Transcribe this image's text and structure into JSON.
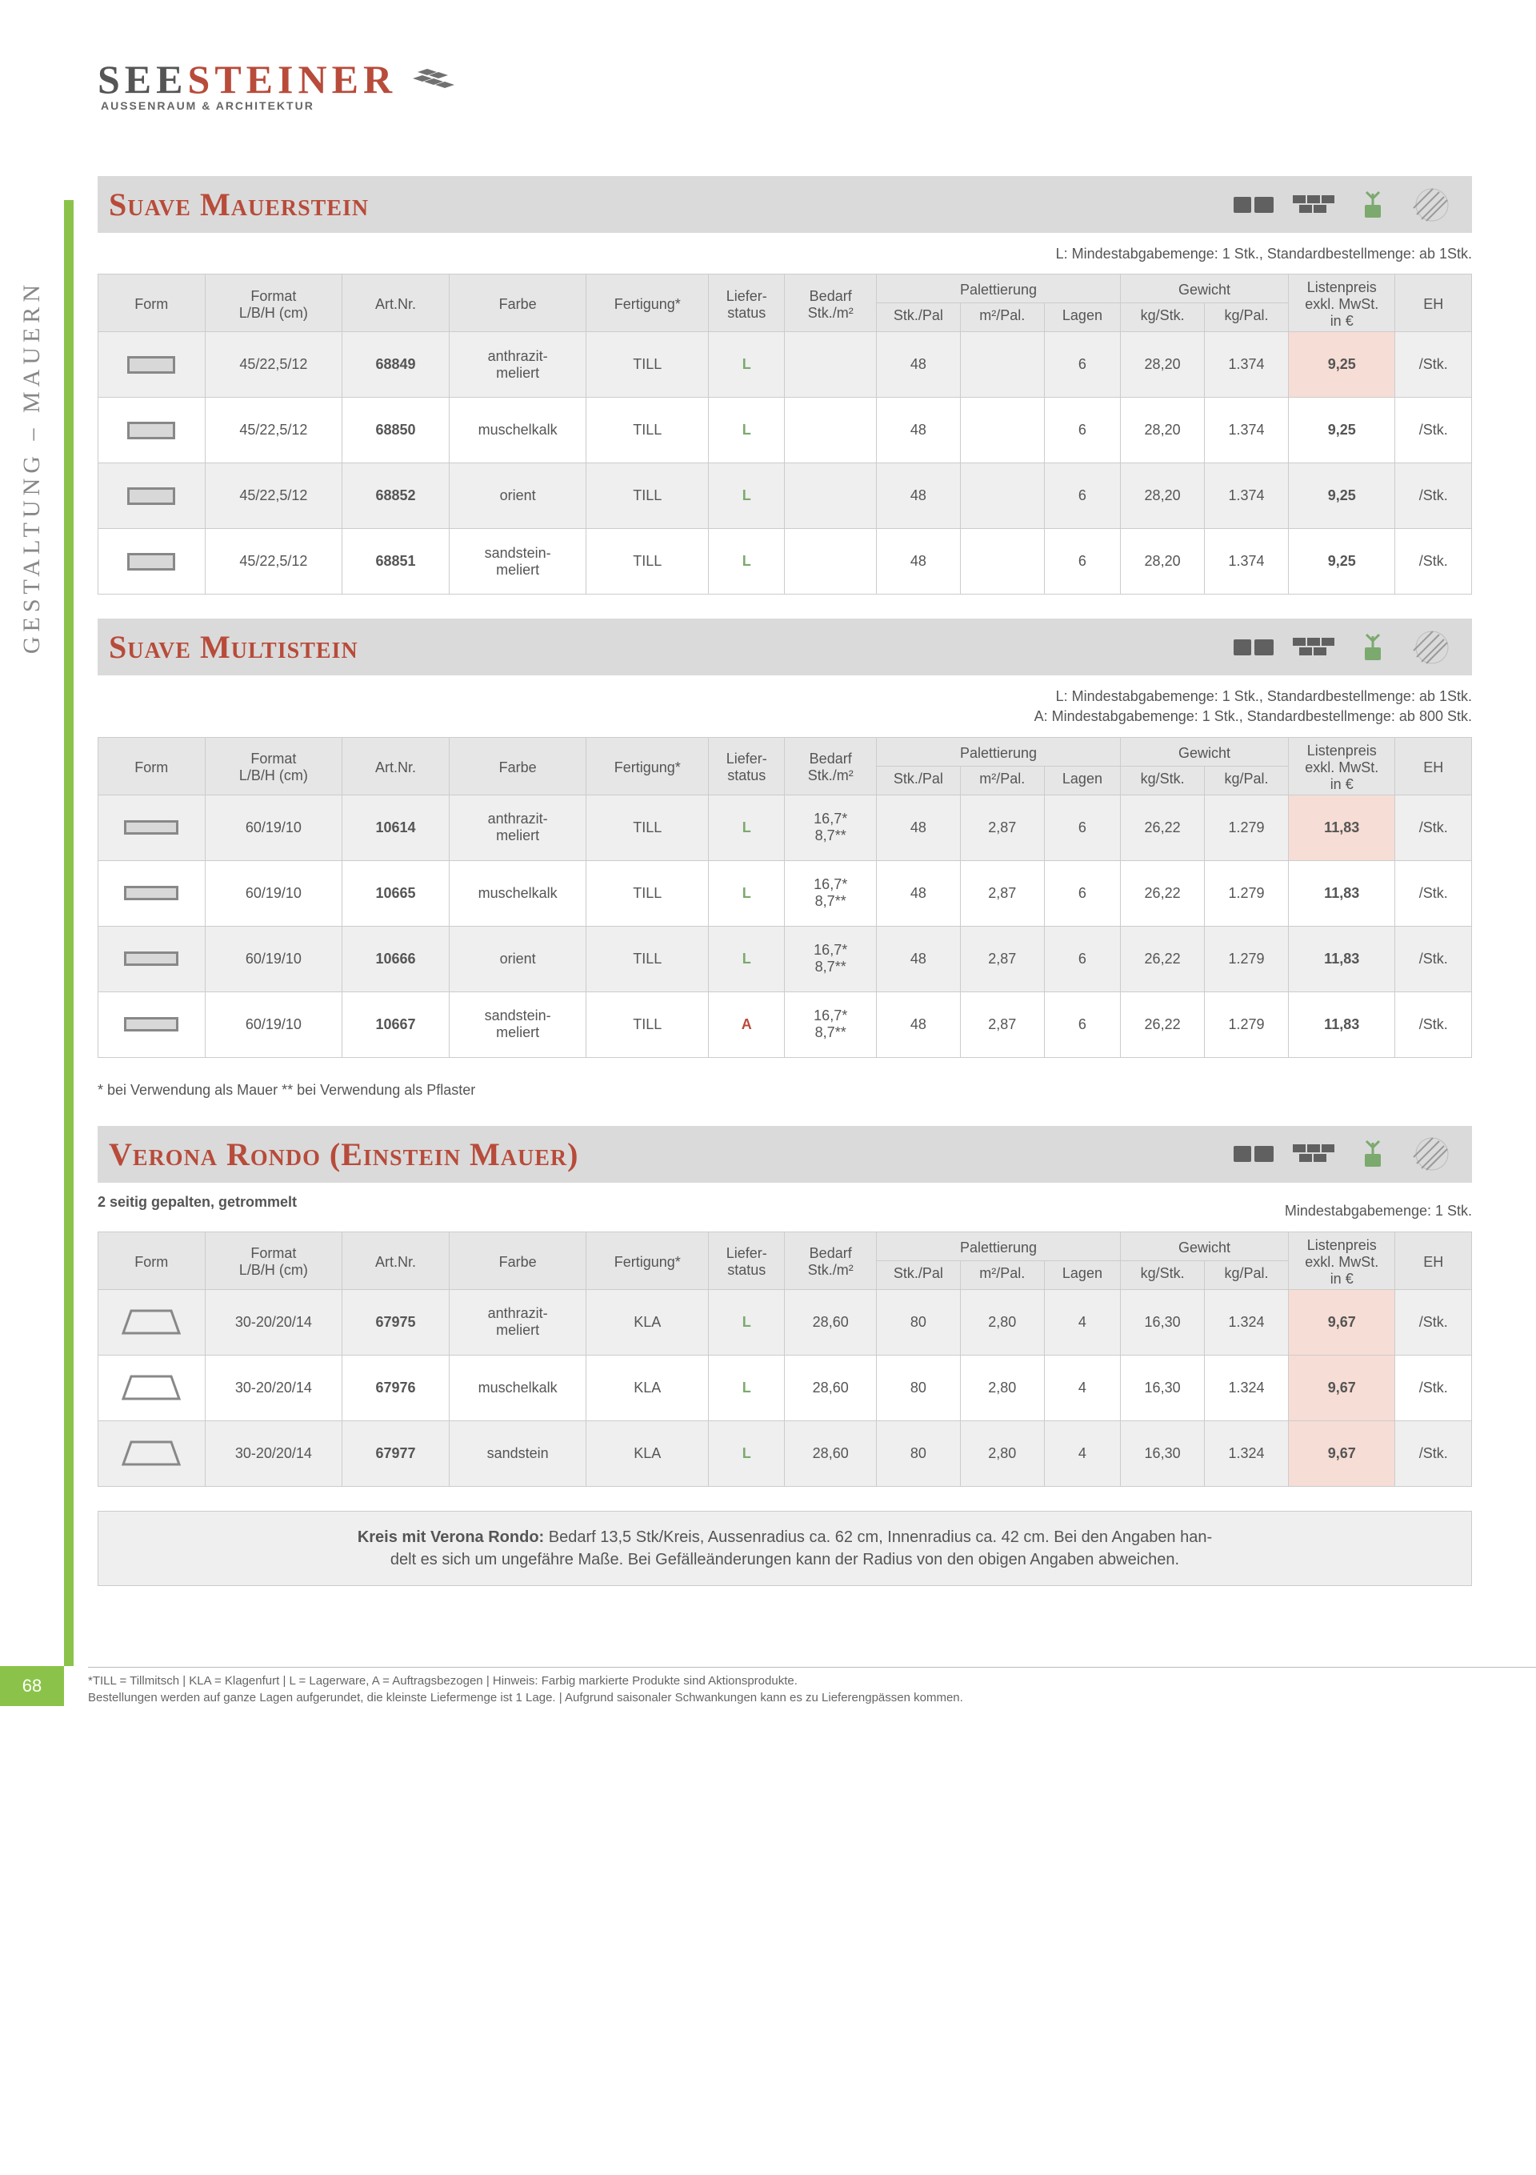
{
  "logo": {
    "brand1": "SEE",
    "brand2": "STEINER",
    "sub": "AUSSENRAUM & ARCHITEKTUR"
  },
  "side_tab": "GESTALTUNG – MAUERN",
  "page_number": "68",
  "columns": {
    "form": "Form",
    "format": "Format\nL/B/H (cm)",
    "artnr": "Art.Nr.",
    "farbe": "Farbe",
    "fertigung": "Fertigung*",
    "liefer": "Liefer-\nstatus",
    "bedarf": "Bedarf\nStk./m²",
    "palettierung": "Palettierung",
    "pal_stk": "Stk./Pal",
    "pal_m2": "m²/Pal.",
    "pal_lagen": "Lagen",
    "gewicht": "Gewicht",
    "gew_stk": "kg/Stk.",
    "gew_pal": "kg/Pal.",
    "listenpreis": "Listenpreis\nexkl. MwSt.\nin €",
    "eh": "EH"
  },
  "sections": [
    {
      "title": "Suave Mauerstein",
      "notes_right": [
        "L: Mindestabgabemenge: 1 Stk., Standardbestellmenge: ab 1Stk."
      ],
      "shape": "brick",
      "price_highlight_rows": [
        0
      ],
      "rows": [
        {
          "format": "45/22,5/12",
          "artnr": "68849",
          "farbe": "anthrazit-\nmeliert",
          "fert": "TILL",
          "lief": "L",
          "bedarf": "",
          "stkpal": "48",
          "m2pal": "",
          "lagen": "6",
          "kgstk": "28,20",
          "kgpal": "1.374",
          "price": "9,25",
          "eh": "/Stk."
        },
        {
          "format": "45/22,5/12",
          "artnr": "68850",
          "farbe": "muschelkalk",
          "fert": "TILL",
          "lief": "L",
          "bedarf": "",
          "stkpal": "48",
          "m2pal": "",
          "lagen": "6",
          "kgstk": "28,20",
          "kgpal": "1.374",
          "price": "9,25",
          "eh": "/Stk."
        },
        {
          "format": "45/22,5/12",
          "artnr": "68852",
          "farbe": "orient",
          "fert": "TILL",
          "lief": "L",
          "bedarf": "",
          "stkpal": "48",
          "m2pal": "",
          "lagen": "6",
          "kgstk": "28,20",
          "kgpal": "1.374",
          "price": "9,25",
          "eh": "/Stk."
        },
        {
          "format": "45/22,5/12",
          "artnr": "68851",
          "farbe": "sandstein-\nmeliert",
          "fert": "TILL",
          "lief": "L",
          "bedarf": "",
          "stkpal": "48",
          "m2pal": "",
          "lagen": "6",
          "kgstk": "28,20",
          "kgpal": "1.374",
          "price": "9,25",
          "eh": "/Stk."
        }
      ],
      "footnote": ""
    },
    {
      "title": "Suave Multistein",
      "notes_right": [
        "L: Mindestabgabemenge: 1 Stk., Standardbestellmenge: ab 1Stk.",
        "A: Mindestabgabemenge: 1 Stk., Standardbestellmenge: ab 800 Stk."
      ],
      "shape": "brick-flat",
      "price_highlight_rows": [
        0
      ],
      "rows": [
        {
          "format": "60/19/10",
          "artnr": "10614",
          "farbe": "anthrazit-\nmeliert",
          "fert": "TILL",
          "lief": "L",
          "bedarf": "16,7*\n8,7**",
          "stkpal": "48",
          "m2pal": "2,87",
          "lagen": "6",
          "kgstk": "26,22",
          "kgpal": "1.279",
          "price": "11,83",
          "eh": "/Stk."
        },
        {
          "format": "60/19/10",
          "artnr": "10665",
          "farbe": "muschelkalk",
          "fert": "TILL",
          "lief": "L",
          "bedarf": "16,7*\n8,7**",
          "stkpal": "48",
          "m2pal": "2,87",
          "lagen": "6",
          "kgstk": "26,22",
          "kgpal": "1.279",
          "price": "11,83",
          "eh": "/Stk."
        },
        {
          "format": "60/19/10",
          "artnr": "10666",
          "farbe": "orient",
          "fert": "TILL",
          "lief": "L",
          "bedarf": "16,7*\n8,7**",
          "stkpal": "48",
          "m2pal": "2,87",
          "lagen": "6",
          "kgstk": "26,22",
          "kgpal": "1.279",
          "price": "11,83",
          "eh": "/Stk."
        },
        {
          "format": "60/19/10",
          "artnr": "10667",
          "farbe": "sandstein-\nmeliert",
          "fert": "TILL",
          "lief": "A",
          "bedarf": "16,7*\n8,7**",
          "stkpal": "48",
          "m2pal": "2,87",
          "lagen": "6",
          "kgstk": "26,22",
          "kgpal": "1.279",
          "price": "11,83",
          "eh": "/Stk."
        }
      ],
      "footnote": "* bei Verwendung als Mauer ** bei Verwendung als Pflaster"
    },
    {
      "title": "Verona Rondo (Einstein Mauer)",
      "subtitle_left": "2 seitig gepalten, getrommelt",
      "notes_right": [
        "Mindestabgabemenge: 1 Stk."
      ],
      "shape": "trapezoid",
      "price_highlight_rows": [
        0,
        1,
        2
      ],
      "rows": [
        {
          "format": "30-20/20/14",
          "artnr": "67975",
          "farbe": "anthrazit-\nmeliert",
          "fert": "KLA",
          "lief": "L",
          "bedarf": "28,60",
          "stkpal": "80",
          "m2pal": "2,80",
          "lagen": "4",
          "kgstk": "16,30",
          "kgpal": "1.324",
          "price": "9,67",
          "eh": "/Stk."
        },
        {
          "format": "30-20/20/14",
          "artnr": "67976",
          "farbe": "muschelkalk",
          "fert": "KLA",
          "lief": "L",
          "bedarf": "28,60",
          "stkpal": "80",
          "m2pal": "2,80",
          "lagen": "4",
          "kgstk": "16,30",
          "kgpal": "1.324",
          "price": "9,67",
          "eh": "/Stk."
        },
        {
          "format": "30-20/20/14",
          "artnr": "67977",
          "farbe": "sandstein",
          "fert": "KLA",
          "lief": "L",
          "bedarf": "28,60",
          "stkpal": "80",
          "m2pal": "2,80",
          "lagen": "4",
          "kgstk": "16,30",
          "kgpal": "1.324",
          "price": "9,67",
          "eh": "/Stk."
        }
      ],
      "footnote": "",
      "info_box": "Kreis mit Verona Rondo: Bedarf 13,5 Stk/Kreis, Aussenradius ca. 62 cm, Innenradius ca. 42 cm. Bei den Angaben han-\ndelt es sich um ungefähre Maße. Bei Gefälleänderungen kann der Radius von den obigen Angaben abweichen."
    }
  ],
  "disclaimer": "*TILL = Tillmitsch | KLA = Klagenfurt | L = Lagerware, A = Auftragsbezogen | Hinweis: Farbig markierte Produkte sind Aktionsprodukte.\nBestellungen werden auf ganze Lagen aufgerundet, die kleinste Liefermenge ist 1 Lage. | Aufgrund saisonaler Schwankungen kann es zu Lieferengpässen kommen.",
  "colors": {
    "accent_red": "#b84b3a",
    "green": "#8bc34a",
    "header_grey": "#dadada",
    "row_alt": "#efefef",
    "price_highlight": "#f6ddd5",
    "border": "#cccccc",
    "text": "#555555"
  }
}
